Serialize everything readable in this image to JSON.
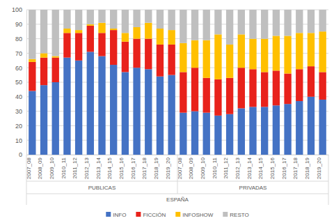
{
  "chart_data": {
    "type": "bar",
    "stacked": true,
    "grid": true,
    "legend": "bottom",
    "categories": [
      "2007_08",
      "2008_09",
      "2009_10",
      "2010_11",
      "2011_12",
      "2012_13",
      "2013_14",
      "2014_15",
      "2015_16",
      "2016_17",
      "2017_18",
      "2018_19",
      "2019_20",
      "2007_08",
      "2008_09",
      "2009_10",
      "2010_11",
      "2011_12",
      "2012_13",
      "2013_14",
      "2014_15",
      "2015_16",
      "2016_17",
      "2017_18",
      "2018_19",
      "2019_20"
    ],
    "groups": [
      {
        "label": "PUBLICAS",
        "size": 13
      },
      {
        "label": "PRIVADAS",
        "size": 13
      }
    ],
    "group_title": "ESPAÑA",
    "ylim": [
      0,
      100
    ],
    "yticks": [
      0,
      10,
      20,
      30,
      40,
      50,
      60,
      70,
      80,
      90,
      100
    ],
    "series": [
      {
        "name": "INFO",
        "color": "#4472c4",
        "values": [
          44,
          48,
          50,
          67,
          65,
          71,
          68,
          62,
          57,
          60,
          59,
          54,
          55,
          29,
          30,
          29,
          27,
          28,
          32,
          33,
          33,
          34,
          35,
          37,
          40,
          38
        ]
      },
      {
        "name": "FICCIÓN",
        "color": "#e8221b",
        "values": [
          20,
          19,
          17,
          17,
          19,
          18,
          16,
          24,
          21,
          20,
          21,
          22,
          21,
          28,
          30,
          24,
          25,
          25,
          28,
          26,
          24,
          24,
          21,
          22,
          21,
          19
        ]
      },
      {
        "name": "INFOSHOW",
        "color": "#ffc000",
        "values": [
          2,
          3,
          1,
          3,
          2,
          1,
          7,
          1,
          6,
          8,
          11,
          11,
          10,
          20,
          19,
          26,
          31,
          23,
          23,
          21,
          23,
          24,
          26,
          25,
          23,
          28
        ]
      },
      {
        "name": "RESTO",
        "color": "#bfbfbf",
        "values": [
          34,
          30,
          32,
          13,
          14,
          10,
          9,
          13,
          16,
          12,
          9,
          13,
          14,
          23,
          21,
          21,
          17,
          24,
          17,
          20,
          20,
          18,
          18,
          16,
          16,
          15
        ]
      }
    ]
  }
}
